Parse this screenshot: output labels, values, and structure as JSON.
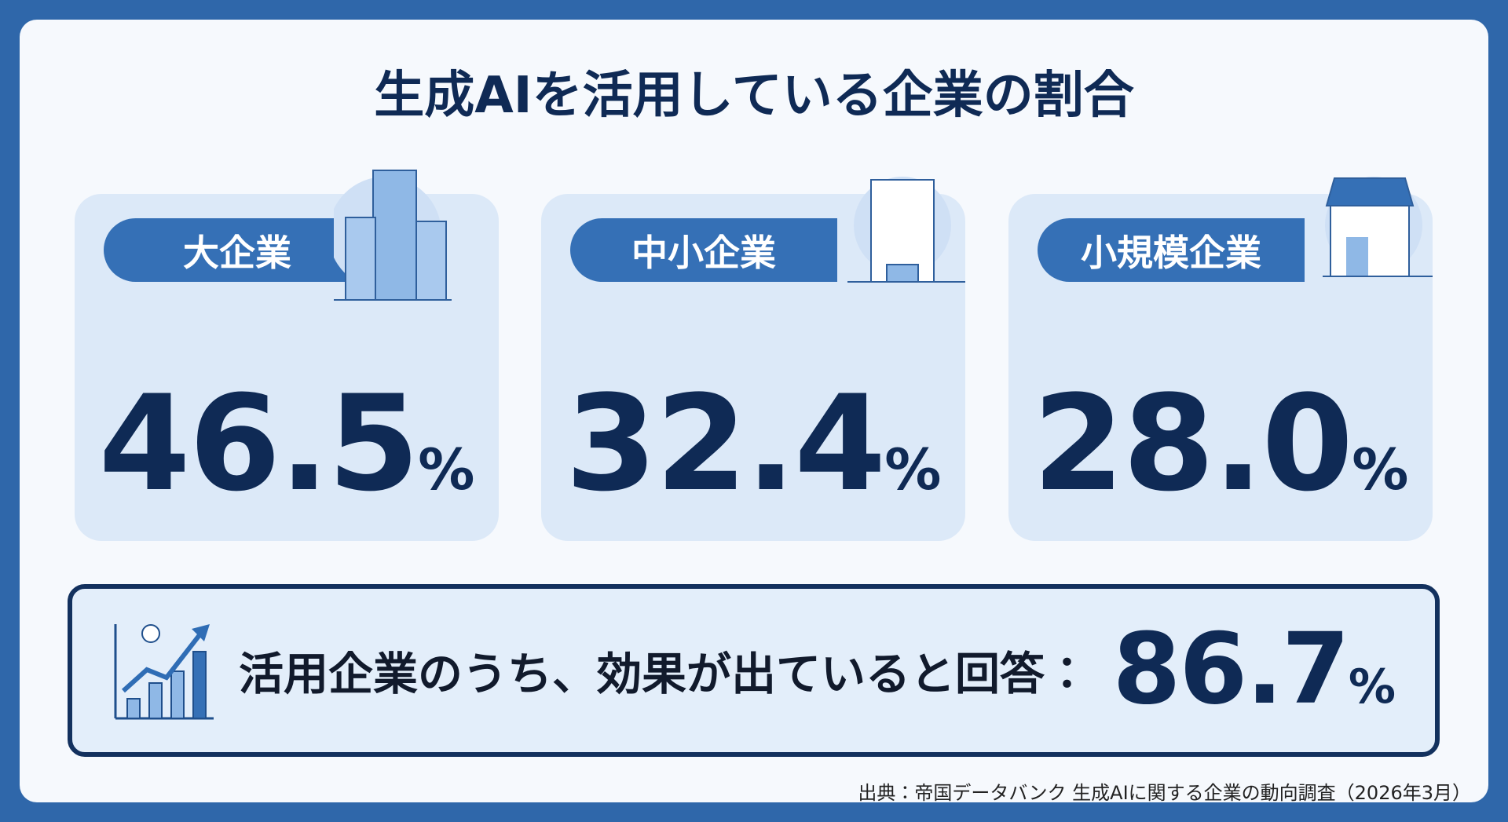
{
  "header": {
    "title": "生成AIを活用している企業の割合"
  },
  "cards": [
    {
      "label": "大企業",
      "value": "46.5",
      "unit": "%"
    },
    {
      "label": "中小企業",
      "value": "32.4",
      "unit": "%"
    },
    {
      "label": "小規模企業",
      "value": "28.0",
      "unit": "%"
    }
  ],
  "summary": {
    "text": "活用企業のうち、効果が出ていると回答：",
    "value": "86.7",
    "unit": "%"
  },
  "footer": {
    "source": "出典：帝国データバンク 生成AIに関する企業の動向調査（2026年3月）"
  }
}
